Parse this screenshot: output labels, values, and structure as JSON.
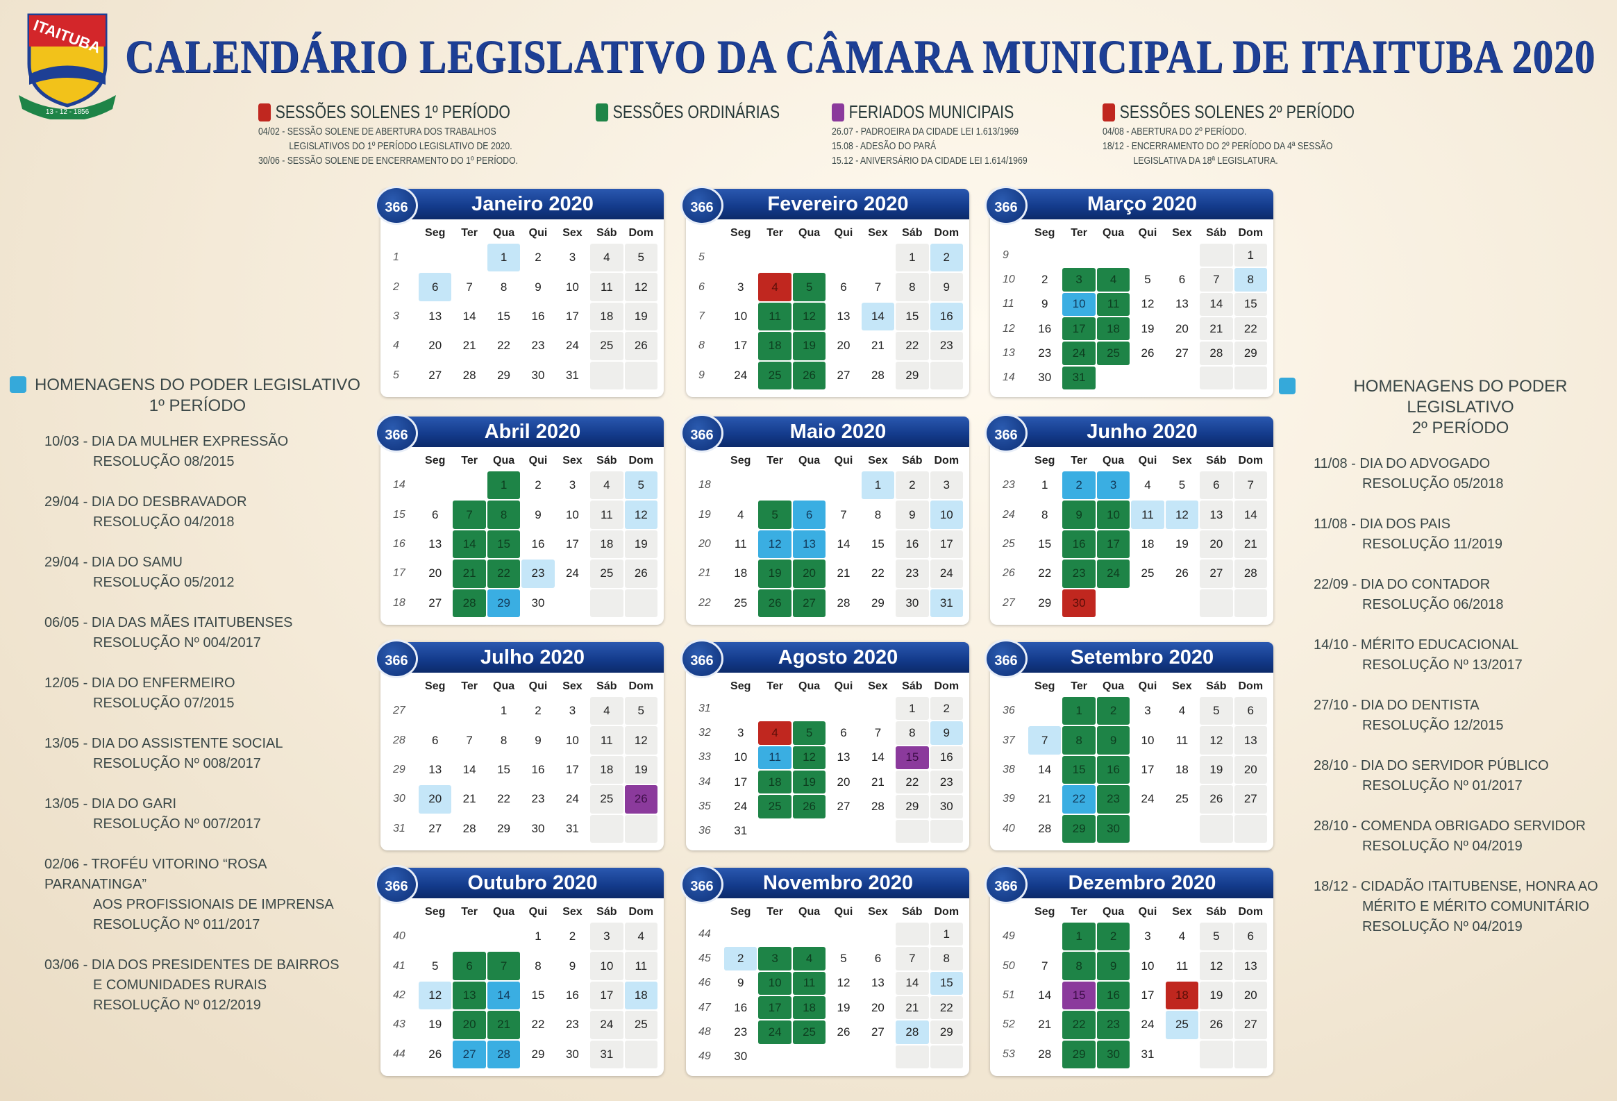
{
  "logo": {
    "text": "ITAITUBA",
    "date": "13 - 12 - 1856"
  },
  "title": "CALENDÁRIO LEGISLATIVO DA CÂMARA MUNICIPAL DE ITAITUBA 2020",
  "colors": {
    "ordinaria": "#1e8447",
    "solene": "#c0271f",
    "feriado": "#8b3a9c",
    "homenagem": "#3aaee2",
    "homenagem_light": "#c5e6f8",
    "header": "#133a8a",
    "title": "#1d3f95"
  },
  "legend": [
    {
      "label": "SESSÕES SOLENES 1º PERÍODO",
      "color": "#c0271f",
      "desc": "04/02 - SESSÃO SOLENE DE ABERTURA DOS TRABALHOS\n             LEGISLATIVOS DO 1º PERÍODO LEGISLATIVO DE 2020.\n30/06 - SESSÃO SOLENE DE ENCERRAMENTO DO 1º PERÍODO."
    },
    {
      "label": "SESSÕES ORDINÁRIAS",
      "color": "#1e8447",
      "desc": ""
    },
    {
      "label": "FERIADOS MUNICIPAIS",
      "color": "#8b3a9c",
      "desc": "26.07 - PADROEIRA DA CIDADE LEI 1.613/1969\n15.08 - ADESÃO DO PARÁ\n15.12 - ANIVERSÁRIO DA CIDADE LEI 1.614/1969"
    },
    {
      "label": "SESSÕES SOLENES 2º PERÍODO",
      "color": "#c0271f",
      "desc": "04/08 - ABERTURA DO 2º PERÍODO.\n18/12 - ENCERRAMENTO DO 2º PERÍODO DA 4ª SESSÃO\n             LEGISLATIVA DA 18ª LEGISLATURA."
    }
  ],
  "left_panel": {
    "title": "HOMENAGENS DO PODER LEGISLATIVO",
    "subtitle": "1º PERÍODO",
    "items": [
      {
        "line1": "10/03 - DIA DA MULHER EXPRESSÃO",
        "line2": "RESOLUÇÃO 08/2015"
      },
      {
        "line1": "29/04 - DIA DO DESBRAVADOR",
        "line2": "RESOLUÇÃO 04/2018"
      },
      {
        "line1": "29/04 - DIA DO SAMU",
        "line2": "RESOLUÇÃO 05/2012"
      },
      {
        "line1": "06/05 - DIA DAS MÃES ITAITUBENSES",
        "line2": "RESOLUÇÃO Nº 004/2017"
      },
      {
        "line1": "12/05 - DIA DO ENFERMEIRO",
        "line2": "RESOLUÇÃO 07/2015"
      },
      {
        "line1": "13/05 - DIA DO ASSISTENTE SOCIAL",
        "line2": "RESOLUÇÃO Nº 008/2017"
      },
      {
        "line1": "13/05 - DIA DO GARI",
        "line2": "RESOLUÇÃO Nº 007/2017"
      },
      {
        "line1": "02/06 - TROFÉU VITORINO “ROSA PARANATINGA”",
        "line2": "AOS PROFISSIONAIS DE IMPRENSA",
        "line3": "RESOLUÇÃO Nº 011/2017"
      },
      {
        "line1": "03/06 - DIA DOS PRESIDENTES DE BAIRROS",
        "line2": "E COMUNIDADES RURAIS",
        "line3": "RESOLUÇÃO Nº 012/2019"
      }
    ]
  },
  "right_panel": {
    "title": "HOMENAGENS DO PODER LEGISLATIVO",
    "subtitle": "2º PERÍODO",
    "items": [
      {
        "line1": "11/08 - DIA DO ADVOGADO",
        "line2": "RESOLUÇÃO 05/2018"
      },
      {
        "line1": "11/08 - DIA DOS PAIS",
        "line2": "RESOLUÇÃO 11/2019"
      },
      {
        "line1": "22/09 - DIA DO CONTADOR",
        "line2": "RESOLUÇÃO 06/2018"
      },
      {
        "line1": "14/10 - MÉRITO EDUCACIONAL",
        "line2": "RESOLUÇÃO Nº 13/2017"
      },
      {
        "line1": "27/10 - DIA DO DENTISTA",
        "line2": "RESOLUÇÃO 12/2015"
      },
      {
        "line1": "28/10 - DIA DO SERVIDOR PÚBLICO",
        "line2": "RESOLUÇÃO Nº 01/2017"
      },
      {
        "line1": "28/10 - COMENDA OBRIGADO SERVIDOR",
        "line2": "RESOLUÇÃO Nº 04/2019"
      },
      {
        "line1": "18/12 - CIDADÃO ITAITUBENSE, HONRA AO",
        "line2": "MÉRITO E MÉRITO COMUNITÁRIO",
        "line3": "RESOLUÇÃO Nº 04/2019"
      }
    ]
  },
  "badge": "366",
  "weekdays": [
    "Seg",
    "Ter",
    "Qua",
    "Qui",
    "Sex",
    "Sáb",
    "Dom"
  ],
  "months": [
    {
      "name": "Janeiro 2020",
      "first_weekday": "Qua",
      "days": 31,
      "weeks": [
        1,
        2,
        3,
        4,
        5
      ],
      "marks": {
        "1": "l",
        "6": "l"
      }
    },
    {
      "name": "Fevereiro 2020",
      "first_weekday": "Sáb",
      "days": 29,
      "weeks": [
        5,
        6,
        7,
        8,
        9
      ],
      "marks": {
        "2": "l",
        "4": "r",
        "5": "g",
        "11": "g",
        "12": "g",
        "14": "l",
        "16": "l",
        "18": "g",
        "19": "g",
        "25": "g",
        "26": "g"
      }
    },
    {
      "name": "Março 2020",
      "first_weekday": "Dom",
      "days": 31,
      "weeks": [
        9,
        10,
        11,
        12,
        13,
        14
      ],
      "marks": {
        "3": "g",
        "4": "g",
        "8": "l",
        "10": "b",
        "11": "g",
        "17": "g",
        "18": "g",
        "24": "g",
        "25": "g",
        "31": "g"
      }
    },
    {
      "name": "Abril 2020",
      "first_weekday": "Qua",
      "days": 30,
      "weeks": [
        14,
        15,
        16,
        17,
        18
      ],
      "marks": {
        "1": "g",
        "5": "l",
        "7": "g",
        "8": "g",
        "12": "l",
        "14": "g",
        "15": "g",
        "21": "g",
        "22": "g",
        "23": "l",
        "28": "g",
        "29": "b"
      }
    },
    {
      "name": "Maio 2020",
      "first_weekday": "Sex",
      "days": 31,
      "weeks": [
        18,
        19,
        20,
        21,
        22
      ],
      "marks": {
        "1": "l",
        "5": "g",
        "6": "b",
        "10": "l",
        "12": "b",
        "13": "b",
        "19": "g",
        "20": "g",
        "26": "g",
        "27": "g",
        "31": "l"
      }
    },
    {
      "name": "Junho 2020",
      "first_weekday": "Seg",
      "days": 30,
      "weeks": [
        23,
        24,
        25,
        26,
        27
      ],
      "marks": {
        "2": "b",
        "3": "b",
        "9": "g",
        "10": "g",
        "11": "l",
        "12": "l",
        "16": "g",
        "17": "g",
        "23": "g",
        "24": "g",
        "30": "r"
      }
    },
    {
      "name": "Julho 2020",
      "first_weekday": "Qua",
      "days": 31,
      "weeks": [
        27,
        28,
        29,
        30,
        31
      ],
      "marks": {
        "20": "l",
        "26": "p"
      }
    },
    {
      "name": "Agosto 2020",
      "first_weekday": "Sáb",
      "days": 31,
      "weeks": [
        31,
        32,
        33,
        34,
        35,
        36
      ],
      "marks": {
        "4": "r",
        "5": "g",
        "9": "l",
        "11": "b",
        "12": "g",
        "15": "p",
        "18": "g",
        "19": "g",
        "25": "g",
        "26": "g"
      }
    },
    {
      "name": "Setembro 2020",
      "first_weekday": "Ter",
      "days": 30,
      "weeks": [
        36,
        37,
        38,
        39,
        40
      ],
      "marks": {
        "1": "g",
        "2": "g",
        "7": "l",
        "8": "g",
        "9": "g",
        "15": "g",
        "16": "g",
        "22": "b",
        "23": "g",
        "29": "g",
        "30": "g"
      }
    },
    {
      "name": "Outubro 2020",
      "first_weekday": "Qui",
      "days": 31,
      "weeks": [
        40,
        41,
        42,
        43,
        44
      ],
      "marks": {
        "6": "g",
        "7": "g",
        "12": "l",
        "13": "g",
        "14": "b",
        "18": "l",
        "20": "g",
        "21": "g",
        "27": "b",
        "28": "b"
      }
    },
    {
      "name": "Novembro 2020",
      "first_weekday": "Dom",
      "days": 30,
      "weeks": [
        44,
        45,
        46,
        47,
        48,
        49
      ],
      "marks": {
        "2": "l",
        "3": "g",
        "4": "g",
        "10": "g",
        "11": "g",
        "15": "l",
        "17": "g",
        "18": "g",
        "24": "g",
        "25": "g",
        "28": "l"
      }
    },
    {
      "name": "Dezembro 2020",
      "first_weekday": "Ter",
      "days": 31,
      "weeks": [
        49,
        50,
        51,
        52,
        53
      ],
      "marks": {
        "1": "g",
        "2": "g",
        "8": "g",
        "9": "g",
        "15": "p",
        "16": "g",
        "18": "r",
        "22": "g",
        "23": "g",
        "25": "l",
        "29": "g",
        "30": "g"
      }
    }
  ]
}
